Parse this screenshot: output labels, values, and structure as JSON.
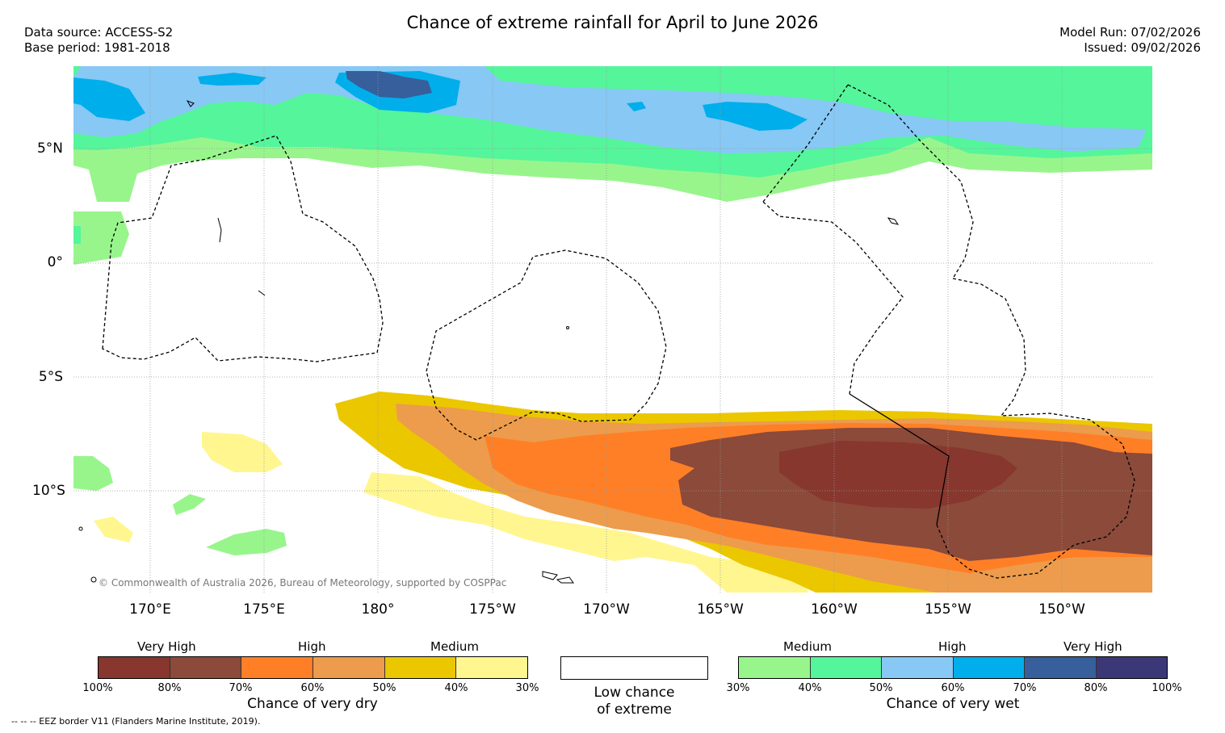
{
  "title": "Chance of extreme rainfall for April to June 2026",
  "data_source": "Data source: ACCESS-S2",
  "base_period": "Base period: 1981-2018",
  "model_run": "Model Run: 07/02/2026",
  "issued": "Issued: 09/02/2026",
  "latitude_labels": [
    "5°N",
    "0°",
    "5°S",
    "10°S"
  ],
  "longitude_labels": [
    "170°E",
    "175°E",
    "180°",
    "175°W",
    "170°W",
    "165°W",
    "160°W",
    "155°W",
    "150°W"
  ],
  "copyright": "© Commonwealth of Australia 2026, Bureau of Meteorology, supported by COSPPac",
  "eez_note": "--  --  -- EEZ border V11 (Flanders Marine Institute, 2019).",
  "legend": {
    "dry": {
      "categories": [
        "Very High",
        "High",
        "Medium"
      ],
      "colors": [
        "#87372e",
        "#8b4a3a",
        "#ff7f27",
        "#ec9c4c",
        "#ebc700",
        "#fff68f"
      ],
      "ticks": [
        "100%",
        "80%",
        "70%",
        "60%",
        "50%",
        "40%",
        "30%"
      ],
      "caption": "Chance of very dry"
    },
    "low": {
      "caption_line1": "Low chance",
      "caption_line2": "of extreme"
    },
    "wet": {
      "categories": [
        "Medium",
        "High",
        "Very High"
      ],
      "colors": [
        "#98f58c",
        "#55f59b",
        "#87c8f5",
        "#00aeeb",
        "#375f9b",
        "#3c3878"
      ],
      "ticks": [
        "30%",
        "40%",
        "50%",
        "60%",
        "70%",
        "80%",
        "100%"
      ],
      "caption": "Chance of very wet"
    }
  }
}
